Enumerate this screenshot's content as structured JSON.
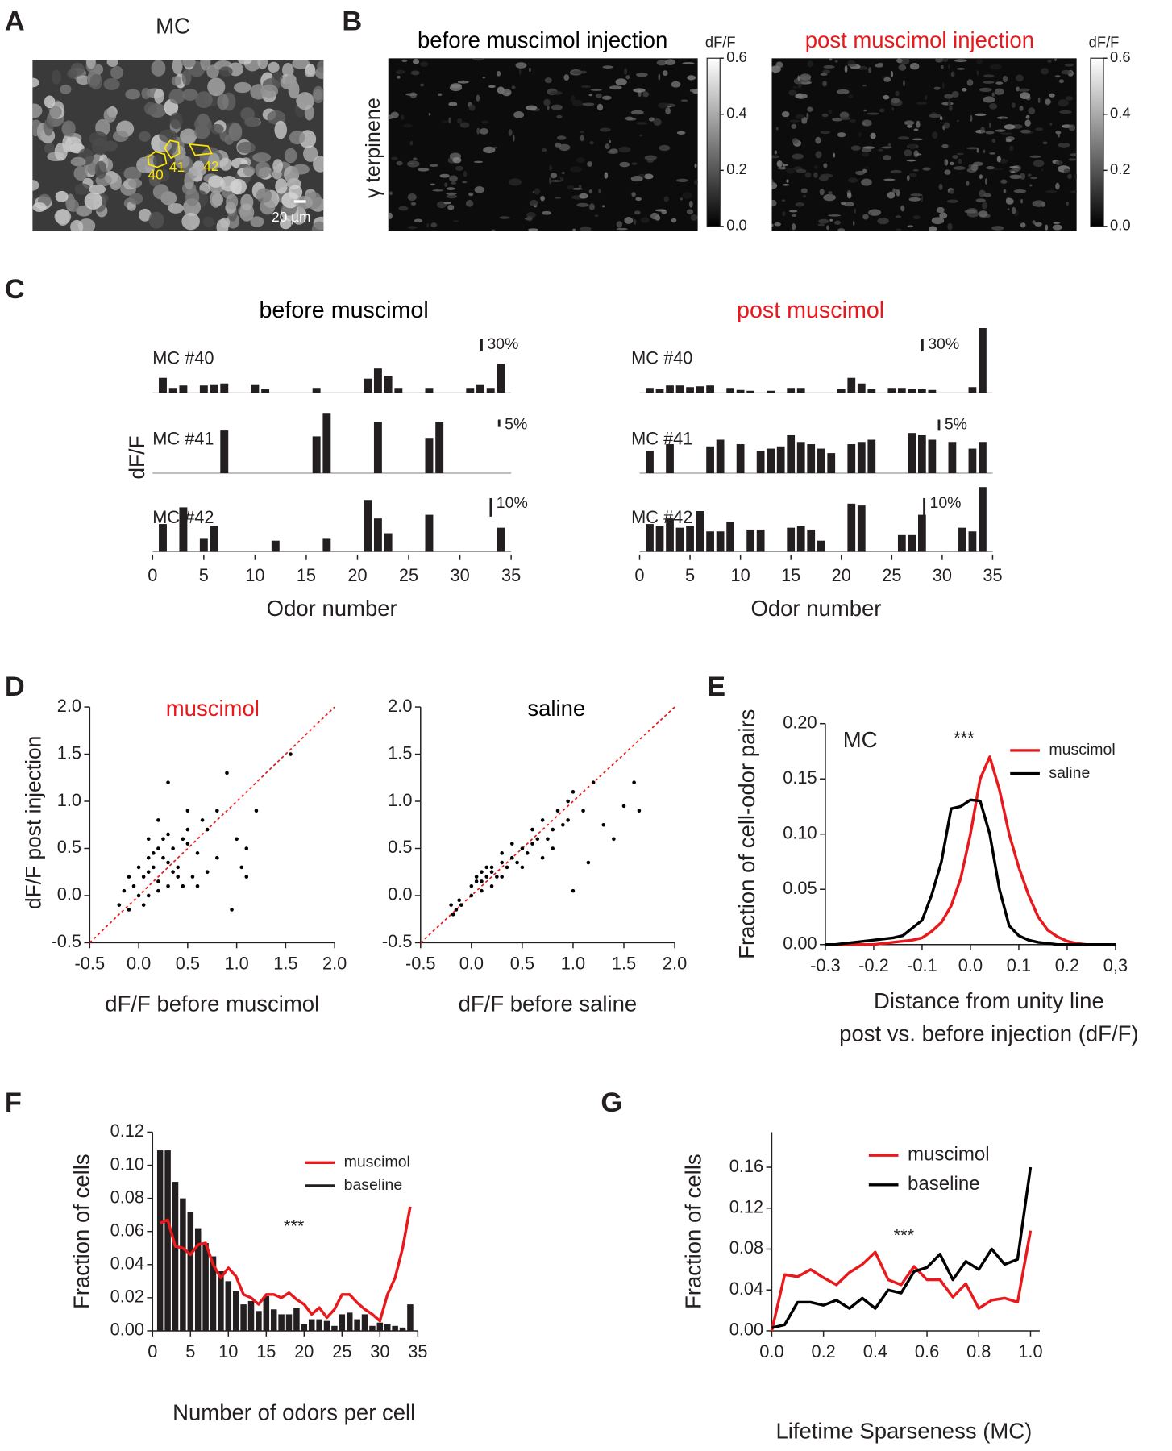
{
  "chart_data": [
    {
      "type": "image",
      "panel": "A",
      "title": "MC",
      "roi_labels": [
        "40",
        "41",
        "42"
      ],
      "scale_bar": "20 µm"
    },
    {
      "type": "image-pair",
      "panel": "B",
      "ylabel": "γ terpinene",
      "colorbar_label": "dF/F",
      "colorbar_lim": [
        0,
        0.6
      ],
      "colorbar_ticks": [
        {
          "value": 0,
          "label": "0.0"
        },
        0.2,
        0.4,
        0.6
      ],
      "images": [
        {
          "title": "before muscimol injection",
          "color": "#000000"
        },
        {
          "title": "post muscimol injection",
          "color": "#e8191c"
        }
      ]
    },
    {
      "type": "bar",
      "panel": "C",
      "ylabel": "dF/F",
      "xlabel": "Odor number",
      "xlim": [
        0,
        35
      ],
      "xticks": [
        0,
        5,
        10,
        15,
        20,
        25,
        30,
        35
      ],
      "odors": [
        1,
        2,
        3,
        4,
        5,
        6,
        7,
        8,
        9,
        10,
        11,
        12,
        13,
        14,
        15,
        16,
        17,
        18,
        19,
        20,
        21,
        22,
        23,
        24,
        25,
        26,
        27,
        28,
        29,
        30,
        31,
        32,
        33,
        34
      ],
      "color": "#231f20",
      "groups": [
        {
          "title": "before muscimol",
          "color": "#000000",
          "cells": [
            {
              "name": "MC #40",
              "scale_bar": {
                "value": 30,
                "label": "30%"
              },
              "ylim": [
                0,
                160
              ],
              "values": [
                37,
                12,
                18,
                0,
                18,
                21,
                23,
                0,
                0,
                21,
                9,
                0,
                0,
                0,
                0,
                12,
                0,
                0,
                0,
                0,
                35,
                60,
                42,
                12,
                0,
                0,
                12,
                0,
                0,
                0,
                12,
                21,
                12,
                72
              ]
            },
            {
              "name": "MC #41",
              "scale_bar": {
                "value": 5,
                "label": "5%"
              },
              "ylim": [
                0,
                44
              ],
              "values": [
                0,
                0,
                0,
                0,
                0,
                0,
                29,
                0,
                0,
                0,
                0,
                0,
                0,
                0,
                0,
                25,
                41,
                0,
                0,
                0,
                0,
                35,
                0,
                0,
                0,
                0,
                24,
                35,
                0,
                0,
                0,
                0,
                0,
                0
              ]
            },
            {
              "name": "MC #42",
              "scale_bar": {
                "value": 10,
                "label": "10%"
              },
              "ylim": [
                0,
                35
              ],
              "values": [
                15,
                0,
                24,
                0,
                7,
                14,
                0,
                0,
                0,
                0,
                0,
                6,
                0,
                0,
                0,
                0,
                7,
                0,
                0,
                0,
                28,
                18,
                10,
                0,
                0,
                0,
                20,
                0,
                0,
                0,
                0,
                0,
                0,
                13
              ]
            }
          ]
        },
        {
          "title": "post muscimol",
          "color": "#e8191c",
          "cells": [
            {
              "name": "MC #40",
              "scale_bar": {
                "value": 30,
                "label": "30%"
              },
              "ylim": [
                0,
                160
              ],
              "values": [
                12,
                9,
                18,
                18,
                14,
                16,
                18,
                0,
                12,
                7,
                5,
                0,
                5,
                0,
                12,
                12,
                0,
                0,
                0,
                9,
                37,
                23,
                9,
                0,
                12,
                12,
                9,
                9,
                7,
                0,
                0,
                0,
                14,
                160
              ]
            },
            {
              "name": "MC #41",
              "scale_bar": {
                "value": 5,
                "label": "5%"
              },
              "ylim": [
                0,
                29
              ],
              "values": [
                10,
                0,
                13,
                0,
                0,
                0,
                12,
                15,
                0,
                13,
                0,
                10,
                11,
                12,
                17,
                14,
                13,
                11,
                9,
                0,
                13,
                14,
                15,
                0,
                0,
                0,
                18,
                17,
                15,
                0,
                14,
                0,
                11,
                14
              ]
            },
            {
              "name": "MC #42",
              "scale_bar": {
                "value": 10,
                "label": "10%"
              },
              "ylim": [
                0,
                35
              ],
              "values": [
                15,
                14,
                18,
                13,
                14,
                22,
                11,
                11,
                16,
                0,
                12,
                12,
                0,
                0,
                13,
                14,
                12,
                6,
                0,
                0,
                26,
                25,
                0,
                0,
                0,
                9,
                9,
                20,
                0,
                0,
                0,
                13,
                11,
                35
              ]
            }
          ]
        }
      ]
    },
    {
      "type": "scatter",
      "panel": "D",
      "ylabel": "dF/F post injection",
      "xlim": [
        -0.5,
        2
      ],
      "ylim": [
        -0.5,
        2
      ],
      "xticks": [
        -0.5,
        {
          "value": 0,
          "label": "0.0"
        },
        0.5,
        {
          "value": 1,
          "label": "1.0"
        },
        1.5,
        {
          "value": 2,
          "label": "2.0"
        }
      ],
      "yticks": [
        -0.5,
        {
          "value": 0,
          "label": "0.0"
        },
        0.5,
        {
          "value": 1,
          "label": "1.0"
        },
        1.5,
        {
          "value": 2,
          "label": "2.0"
        }
      ],
      "unity_line_color": "#e8191c",
      "color": "#000000",
      "subplots": [
        {
          "title": "muscimol",
          "title_color": "#e8191c",
          "xlabel": "dF/F before muscimol",
          "x": [
            -0.2,
            -0.15,
            -0.1,
            -0.05,
            0,
            0.05,
            0.1,
            0.15,
            0.2,
            0.25,
            0.3,
            0.35,
            0.4,
            0.45,
            0.5,
            0.55,
            0.6,
            0.7,
            0.8,
            0.9,
            1.0,
            1.1,
            1.2,
            1.55,
            0.05,
            0.1,
            0.2,
            0.3,
            0.4,
            0.5,
            0.15,
            0.25,
            0.35,
            0.45,
            -0.1,
            0,
            0.1,
            0.2,
            0.3,
            0.6,
            0.7,
            0.65,
            0.8,
            0.95,
            1.05,
            1.1,
            0.5,
            0.3,
            0.2,
            0.1
          ],
          "y": [
            -0.1,
            0.05,
            -0.15,
            0.1,
            0.0,
            0.2,
            0.25,
            0.3,
            0.15,
            0.4,
            0.35,
            0.5,
            0.3,
            0.6,
            0.55,
            0.2,
            0.45,
            0.7,
            0.9,
            1.3,
            0.6,
            0.5,
            0.9,
            1.5,
            -0.1,
            0.0,
            0.05,
            0.1,
            0.2,
            0.7,
            0.45,
            0.6,
            0.25,
            0.1,
            0.2,
            0.3,
            0.4,
            0.5,
            0.65,
            0.1,
            0.25,
            0.8,
            0.4,
            -0.15,
            0.3,
            0.2,
            0.9,
            1.2,
            0.8,
            0.6
          ]
        },
        {
          "title": "saline",
          "title_color": "#000000",
          "xlabel": "dF/F before saline",
          "x": [
            -0.2,
            -0.18,
            -0.15,
            -0.12,
            -0.1,
            0,
            0.05,
            0.1,
            0.15,
            0.2,
            0.25,
            0.3,
            0.35,
            0.4,
            0.45,
            0.5,
            0.55,
            0.6,
            0.65,
            0.7,
            0.75,
            0.8,
            0.85,
            0.9,
            0.95,
            1.0,
            1.1,
            1.2,
            1.3,
            1.4,
            1.5,
            1.6,
            1.65,
            0.05,
            0.1,
            0.15,
            0.2,
            0.3,
            0.4,
            0.5,
            0.6,
            0.7,
            0.8,
            1.0,
            0.0,
            0.1,
            0.2,
            0.3,
            0.95,
            1.15
          ],
          "y": [
            -0.1,
            -0.2,
            -0.15,
            -0.05,
            -0.1,
            0.1,
            0.15,
            0.05,
            0.2,
            0.25,
            0.2,
            0.35,
            0.3,
            0.4,
            0.35,
            0.5,
            0.45,
            0.55,
            0.6,
            0.8,
            0.6,
            0.7,
            0.9,
            0.75,
            1.0,
            1.1,
            0.9,
            1.2,
            0.75,
            0.6,
            0.95,
            1.2,
            0.9,
            0.2,
            0.25,
            0.3,
            0.1,
            0.2,
            0.55,
            0.3,
            0.7,
            0.4,
            0.5,
            0.05,
            0.0,
            0.15,
            0.3,
            0.45,
            0.8,
            0.35
          ]
        }
      ]
    },
    {
      "type": "line",
      "panel": "E",
      "annotation": "MC",
      "significance": "***",
      "ylabel": "Fraction of cell-odor pairs",
      "xlabel": [
        "Distance from unity line",
        "post vs. before injection (dF/F)"
      ],
      "xlim": [
        -0.3,
        0.3
      ],
      "ylim": [
        0,
        0.2
      ],
      "xticks": [
        -0.3,
        -0.2,
        -0.1,
        {
          "value": 0,
          "label": "0.0"
        },
        0.1,
        0.2,
        {
          "value": 0.3,
          "label": "0,3"
        }
      ],
      "yticks": [
        {
          "value": 0,
          "label": "0.00"
        },
        {
          "value": 0.05,
          "label": "0.05"
        },
        {
          "value": 0.1,
          "label": "0.10"
        },
        {
          "value": 0.15,
          "label": "0.15"
        },
        {
          "value": 0.2,
          "label": "0.20"
        }
      ],
      "x": [
        -0.3,
        -0.28,
        -0.26,
        -0.24,
        -0.22,
        -0.2,
        -0.18,
        -0.16,
        -0.14,
        -0.12,
        -0.1,
        -0.08,
        -0.06,
        -0.04,
        -0.02,
        0,
        0.02,
        0.04,
        0.06,
        0.08,
        0.1,
        0.12,
        0.14,
        0.16,
        0.18,
        0.2,
        0.22,
        0.24,
        0.26,
        0.28,
        0.3
      ],
      "series": [
        {
          "name": "muscimol",
          "color": "#e8191c",
          "values": [
            0,
            0,
            0,
            0,
            0,
            0,
            0.001,
            0.002,
            0.003,
            0.004,
            0.006,
            0.012,
            0.02,
            0.035,
            0.06,
            0.1,
            0.15,
            0.17,
            0.14,
            0.1,
            0.07,
            0.045,
            0.025,
            0.013,
            0.007,
            0.003,
            0.001,
            0,
            0,
            0,
            0
          ]
        },
        {
          "name": "saline",
          "color": "#000000",
          "values": [
            0,
            0,
            0.001,
            0.002,
            0.003,
            0.004,
            0.005,
            0.006,
            0.008,
            0.015,
            0.022,
            0.045,
            0.075,
            0.123,
            0.125,
            0.131,
            0.13,
            0.1,
            0.05,
            0.017,
            0.008,
            0.004,
            0.002,
            0.001,
            0,
            0,
            0,
            0,
            0,
            0,
            0
          ]
        }
      ]
    },
    {
      "type": "bar",
      "panel": "F",
      "significance": "***",
      "ylabel": "Fraction of cells",
      "xlabel": "Number of odors per cell",
      "xlim": [
        0,
        35
      ],
      "ylim": [
        0,
        0.12
      ],
      "xticks": [
        0,
        5,
        10,
        15,
        20,
        25,
        30,
        35
      ],
      "yticks": [
        {
          "value": 0,
          "label": "0.00"
        },
        {
          "value": 0.02,
          "label": "0.02"
        },
        {
          "value": 0.04,
          "label": "0.04"
        },
        {
          "value": 0.06,
          "label": "0.06"
        },
        {
          "value": 0.08,
          "label": "0.08"
        },
        {
          "value": 0.1,
          "label": "0.10"
        },
        {
          "value": 0.12,
          "label": "0.12"
        }
      ],
      "x": [
        1,
        2,
        3,
        4,
        5,
        6,
        7,
        8,
        9,
        10,
        11,
        12,
        13,
        14,
        15,
        16,
        17,
        18,
        19,
        20,
        21,
        22,
        23,
        24,
        25,
        26,
        27,
        28,
        29,
        30,
        31,
        32,
        33,
        34
      ],
      "series": [
        {
          "name": "muscimol",
          "color": "#e8191c",
          "style": "line",
          "values": [
            0.065,
            0.067,
            0.051,
            0.05,
            0.046,
            0.052,
            0.053,
            0.04,
            0.032,
            0.038,
            0.033,
            0.022,
            0.02,
            0.016,
            0.022,
            0.022,
            0.02,
            0.023,
            0.019,
            0.016,
            0.01,
            0.014,
            0.008,
            0.013,
            0.022,
            0.022,
            0.017,
            0.013,
            0.01,
            0.006,
            0.022,
            0.032,
            0.05,
            0.075
          ]
        },
        {
          "name": "baseline",
          "color": "#231f20",
          "style": "bar",
          "values": [
            0.109,
            0.109,
            0.09,
            0.08,
            0.072,
            0.062,
            0.053,
            0.045,
            0.036,
            0.03,
            0.024,
            0.016,
            0.018,
            0.012,
            0.021,
            0.013,
            0.01,
            0.01,
            0.014,
            0.004,
            0.007,
            0.007,
            0.006,
            0.003,
            0.01,
            0.011,
            0.007,
            0.01,
            0.003,
            0.005,
            0.004,
            0.003,
            0.002,
            0.016
          ]
        }
      ]
    },
    {
      "type": "line",
      "panel": "G",
      "significance": "***",
      "ylabel": "Fraction of cells",
      "xlabel": "Lifetime Sparseness (MC)",
      "xlim": [
        0,
        1
      ],
      "ylim": [
        0,
        0.16
      ],
      "xticks": [
        {
          "value": 0,
          "label": "0.0"
        },
        0.2,
        0.4,
        0.6,
        0.8,
        {
          "value": 1,
          "label": "1.0"
        }
      ],
      "yticks": [
        {
          "value": 0,
          "label": "0.00"
        },
        {
          "value": 0.04,
          "label": "0.04"
        },
        {
          "value": 0.08,
          "label": "0.08"
        },
        {
          "value": 0.12,
          "label": "0.12"
        },
        {
          "value": 0.16,
          "label": "0.16"
        }
      ],
      "x": [
        0,
        0.05,
        0.1,
        0.15,
        0.2,
        0.25,
        0.3,
        0.35,
        0.4,
        0.45,
        0.5,
        0.55,
        0.6,
        0.65,
        0.7,
        0.75,
        0.8,
        0.85,
        0.9,
        0.95,
        1
      ],
      "series": [
        {
          "name": "muscimol",
          "color": "#e8191c",
          "values": [
            0,
            0.055,
            0.053,
            0.06,
            0.052,
            0.045,
            0.057,
            0.065,
            0.077,
            0.05,
            0.045,
            0.063,
            0.05,
            0.05,
            0.033,
            0.046,
            0.022,
            0.03,
            0.032,
            0.028,
            0.098
          ]
        },
        {
          "name": "baseline",
          "color": "#000000",
          "values": [
            0.003,
            0.006,
            0.028,
            0.028,
            0.025,
            0.03,
            0.022,
            0.032,
            0.022,
            0.04,
            0.037,
            0.058,
            0.062,
            0.075,
            0.05,
            0.068,
            0.06,
            0.08,
            0.065,
            0.07,
            0.16
          ]
        }
      ]
    }
  ]
}
